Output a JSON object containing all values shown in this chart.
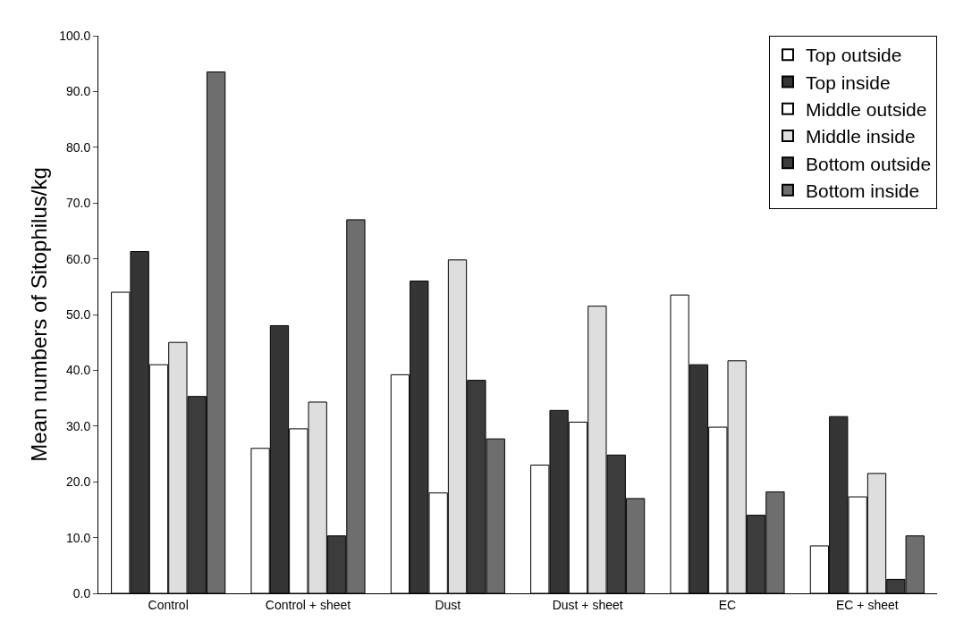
{
  "chart_data": {
    "type": "bar",
    "ylabel": "Mean numbers of Sitophilus/kg",
    "categories": [
      "Control",
      "Control + sheet",
      "Dust",
      "Dust + sheet",
      "EC",
      "EC + sheet"
    ],
    "series": [
      {
        "name": "Top outside",
        "color": "#ffffff",
        "values": [
          54.0,
          26.0,
          39.2,
          23.0,
          53.5,
          8.5
        ]
      },
      {
        "name": "Top inside",
        "color": "#353535",
        "values": [
          61.3,
          48.0,
          56.0,
          32.8,
          41.0,
          31.7
        ]
      },
      {
        "name": "Middle outside",
        "color": "#ffffff",
        "values": [
          41.0,
          29.5,
          18.0,
          30.7,
          29.8,
          17.3
        ]
      },
      {
        "name": "Middle inside",
        "color": "#dedede",
        "values": [
          45.0,
          34.3,
          59.8,
          51.5,
          41.7,
          21.5
        ]
      },
      {
        "name": "Bottom outside",
        "color": "#3c3c3c",
        "values": [
          35.3,
          10.3,
          38.2,
          24.8,
          14.0,
          2.5
        ]
      },
      {
        "name": "Bottom inside",
        "color": "#6e6e6e",
        "values": [
          93.5,
          67.0,
          27.7,
          17.0,
          18.2,
          10.3
        ]
      }
    ],
    "ylim": [
      0,
      100
    ],
    "yticks": [
      {
        "value": 0,
        "label": "0.0"
      },
      {
        "value": 10,
        "label": "10.0"
      },
      {
        "value": 20,
        "label": "20.0"
      },
      {
        "value": 30,
        "label": "30.0"
      },
      {
        "value": 40,
        "label": "40.0"
      },
      {
        "value": 50,
        "label": "50.0"
      },
      {
        "value": 60,
        "label": "60.0"
      },
      {
        "value": 70,
        "label": "70.0"
      },
      {
        "value": 80,
        "label": "80.0"
      },
      {
        "value": 90,
        "label": "90.0"
      },
      {
        "value": 100,
        "label": "100.0"
      }
    ],
    "grid": false,
    "legend": "top right"
  }
}
